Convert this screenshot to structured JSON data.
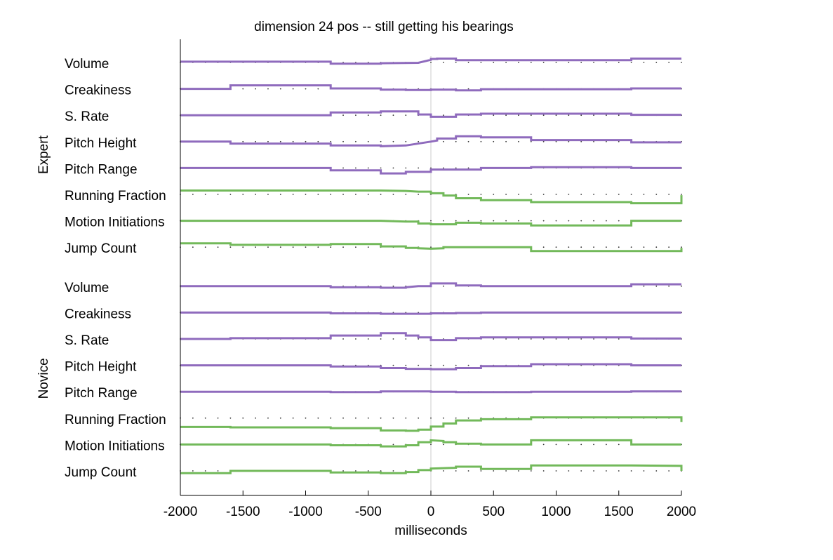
{
  "chart_data": {
    "type": "line",
    "title": "dimension 24 pos --  still getting his bearings",
    "xlabel": "milliseconds",
    "xlim": [
      -2000,
      2000
    ],
    "xticks": [
      -2000,
      -1500,
      -1000,
      -500,
      0,
      500,
      1000,
      1500,
      2000
    ],
    "grid": false,
    "colors": {
      "prosodic": "#8f6bbd",
      "motion": "#72b95a"
    },
    "groups": [
      {
        "name": "Expert",
        "rows": [
          {
            "label": "Volume",
            "kind": "prosodic",
            "x": [
              -2000,
              -800,
              -800,
              -400,
              -400,
              -100,
              0,
              0,
              50,
              50,
              200,
              200,
              400,
              400,
              1600,
              1600,
              2000
            ],
            "y": [
              0.2,
              0.2,
              -0.3,
              -0.3,
              -0.2,
              -0.1,
              0.7,
              0.9,
              0.9,
              1.0,
              1.0,
              0.6,
              0.6,
              0.6,
              0.6,
              1.0,
              1.0
            ]
          },
          {
            "label": "Creakiness",
            "kind": "prosodic",
            "x": [
              -2000,
              -1600,
              -1600,
              -800,
              -800,
              -400,
              -400,
              -200,
              -200,
              0,
              0,
              200,
              200,
              400,
              400,
              1600,
              1600,
              2000
            ],
            "y": [
              0.0,
              0.0,
              0.9,
              0.9,
              0.1,
              0.1,
              -0.2,
              -0.2,
              -0.3,
              -0.3,
              -0.2,
              -0.2,
              -0.4,
              -0.4,
              -0.1,
              -0.1,
              0.1,
              0.1
            ]
          },
          {
            "label": "S. Rate",
            "kind": "prosodic",
            "x": [
              -2000,
              -800,
              -800,
              -400,
              -400,
              -100,
              -100,
              0,
              0,
              200,
              200,
              400,
              400,
              1600,
              1600,
              2000
            ],
            "y": [
              0.0,
              0.0,
              0.7,
              0.7,
              1.0,
              1.0,
              0.2,
              0.2,
              -0.4,
              -0.4,
              0.2,
              0.2,
              0.4,
              0.4,
              0.1,
              0.1
            ]
          },
          {
            "label": "Pitch Height",
            "kind": "prosodic",
            "x": [
              -2000,
              -1600,
              -1600,
              -800,
              -800,
              -400,
              -400,
              -200,
              0,
              50,
              50,
              200,
              200,
              400,
              400,
              800,
              800,
              1600,
              1600,
              2000
            ],
            "y": [
              0.0,
              0.0,
              -0.5,
              -0.5,
              -1.0,
              -1.0,
              -1.2,
              -1.0,
              0.0,
              0.3,
              0.8,
              0.8,
              1.4,
              1.4,
              1.1,
              1.1,
              0.4,
              0.4,
              -0.2,
              -0.2
            ]
          },
          {
            "label": "Pitch Range",
            "kind": "prosodic",
            "x": [
              -2000,
              -800,
              -800,
              -400,
              -400,
              -200,
              -200,
              0,
              0,
              400,
              400,
              800,
              800,
              1600,
              1600,
              2000
            ],
            "y": [
              0.0,
              0.0,
              -0.6,
              -0.6,
              -1.4,
              -1.4,
              -1.0,
              -1.0,
              -0.4,
              -0.4,
              0.0,
              0.0,
              0.2,
              0.2,
              0.0,
              0.0
            ]
          },
          {
            "label": "Running Fraction",
            "kind": "motion",
            "x": [
              -2000,
              -800,
              -400,
              -200,
              -100,
              0,
              0,
              100,
              100,
              200,
              200,
              400,
              400,
              800,
              800,
              1600,
              1600,
              2000,
              2000
            ],
            "y": [
              1.0,
              1.0,
              1.0,
              0.9,
              0.7,
              0.7,
              0.3,
              0.3,
              -0.3,
              -0.3,
              -1.0,
              -1.0,
              -1.5,
              -1.5,
              -2.0,
              -2.0,
              -2.3,
              -2.3,
              -0.2
            ]
          },
          {
            "label": "Motion Initiations",
            "kind": "motion",
            "x": [
              -2000,
              -400,
              -200,
              -100,
              -100,
              0,
              0,
              200,
              200,
              400,
              400,
              800,
              800,
              1600,
              1600,
              2000
            ],
            "y": [
              0.0,
              0.0,
              -0.2,
              -0.2,
              -0.7,
              -0.7,
              -0.9,
              -0.9,
              -0.5,
              -0.5,
              -0.7,
              -0.7,
              -1.2,
              -1.2,
              0.0,
              0.0
            ]
          },
          {
            "label": "Jump Count",
            "kind": "motion",
            "x": [
              -2000,
              -1600,
              -1600,
              -800,
              -800,
              -400,
              -400,
              -200,
              -200,
              -100,
              -100,
              0,
              100,
              100,
              800,
              800,
              1600,
              2000,
              2000
            ],
            "y": [
              1.0,
              1.0,
              0.6,
              0.6,
              0.8,
              0.8,
              0.2,
              0.2,
              -0.2,
              -0.2,
              -0.3,
              -0.4,
              -0.3,
              0.0,
              0.0,
              -1.0,
              -1.0,
              -1.0,
              -0.2
            ]
          }
        ]
      },
      {
        "name": "Novice",
        "rows": [
          {
            "label": "Volume",
            "kind": "prosodic",
            "x": [
              -2000,
              -800,
              -800,
              -400,
              -400,
              -200,
              -200,
              -100,
              0,
              0,
              200,
              200,
              400,
              400,
              1600,
              1600,
              2000
            ],
            "y": [
              0.0,
              0.0,
              -0.3,
              -0.3,
              -0.4,
              -0.4,
              -0.3,
              0.0,
              0.0,
              0.7,
              0.7,
              0.2,
              0.2,
              0.0,
              0.0,
              0.5,
              0.5
            ]
          },
          {
            "label": "Creakiness",
            "kind": "prosodic",
            "x": [
              -2000,
              -800,
              -800,
              -400,
              -400,
              0,
              0,
              200,
              200,
              400,
              400,
              2000
            ],
            "y": [
              0.0,
              0.0,
              -0.2,
              -0.2,
              -0.3,
              -0.3,
              -0.2,
              -0.2,
              -0.1,
              -0.1,
              0.0,
              0.0
            ]
          },
          {
            "label": "S. Rate",
            "kind": "prosodic",
            "x": [
              -2000,
              -1600,
              -1600,
              -800,
              -800,
              -400,
              -400,
              -200,
              -200,
              -100,
              -100,
              0,
              0,
              200,
              200,
              400,
              400,
              1600,
              1600,
              2000
            ],
            "y": [
              0.0,
              0.0,
              0.2,
              0.2,
              0.9,
              0.9,
              1.5,
              1.5,
              0.9,
              0.9,
              0.4,
              0.4,
              -0.3,
              -0.3,
              0.2,
              0.2,
              0.4,
              0.4,
              0.1,
              0.1
            ]
          },
          {
            "label": "Pitch Height",
            "kind": "prosodic",
            "x": [
              -2000,
              -800,
              -800,
              -400,
              -400,
              -200,
              -200,
              0,
              0,
              200,
              200,
              400,
              400,
              800,
              800,
              1600,
              1600,
              2000
            ],
            "y": [
              0.0,
              0.0,
              -0.3,
              -0.3,
              -0.7,
              -0.7,
              -0.9,
              -0.9,
              -1.0,
              -1.0,
              -0.7,
              -0.7,
              -0.2,
              -0.2,
              0.3,
              0.3,
              0.0,
              0.0
            ]
          },
          {
            "label": "Pitch Range",
            "kind": "prosodic",
            "x": [
              -2000,
              -800,
              -800,
              -400,
              -400,
              0,
              0,
              200,
              200,
              800,
              800,
              1600,
              1600,
              2000
            ],
            "y": [
              0.0,
              0.0,
              -0.1,
              -0.1,
              0.1,
              0.1,
              0.0,
              0.0,
              -0.1,
              -0.1,
              0.0,
              0.0,
              0.1,
              0.1
            ]
          },
          {
            "label": "Running Fraction",
            "kind": "motion",
            "x": [
              -2000,
              -1600,
              -1600,
              -800,
              -800,
              -400,
              -400,
              -200,
              -200,
              -100,
              -100,
              0,
              0,
              100,
              100,
              200,
              200,
              400,
              400,
              800,
              800,
              1600,
              1600,
              2000,
              2000
            ],
            "y": [
              -2.3,
              -2.3,
              -2.4,
              -2.4,
              -2.6,
              -2.6,
              -3.2,
              -3.2,
              -3.3,
              -3.3,
              -3.0,
              -3.0,
              -2.2,
              -2.2,
              -1.4,
              -1.4,
              -0.6,
              -0.6,
              -0.3,
              -0.3,
              0.2,
              0.2,
              0.2,
              0.2,
              -1.0
            ]
          },
          {
            "label": "Motion Initiations",
            "kind": "motion",
            "x": [
              -2000,
              -800,
              -800,
              -400,
              -400,
              -200,
              -200,
              -100,
              -100,
              0,
              0,
              100,
              100,
              200,
              200,
              400,
              400,
              800,
              800,
              1600,
              1600,
              2000
            ],
            "y": [
              0.0,
              0.0,
              -0.2,
              -0.2,
              -0.5,
              -0.5,
              -0.2,
              -0.2,
              0.6,
              0.6,
              1.1,
              0.9,
              0.6,
              0.6,
              0.2,
              0.2,
              0.0,
              0.0,
              1.1,
              1.1,
              0.0,
              0.0
            ]
          },
          {
            "label": "Jump Count",
            "kind": "motion",
            "x": [
              -2000,
              -1600,
              -1600,
              -800,
              -800,
              -400,
              -400,
              -200,
              -200,
              -100,
              -100,
              0,
              0,
              200,
              200,
              400,
              400,
              800,
              800,
              1600,
              2000,
              2000
            ],
            "y": [
              -0.6,
              -0.6,
              0.0,
              0.0,
              -0.4,
              -0.4,
              -0.6,
              -0.6,
              -0.3,
              -0.3,
              0.2,
              0.2,
              0.6,
              0.8,
              1.1,
              1.1,
              0.5,
              0.5,
              1.4,
              1.4,
              1.3,
              0.0
            ]
          }
        ]
      }
    ]
  }
}
